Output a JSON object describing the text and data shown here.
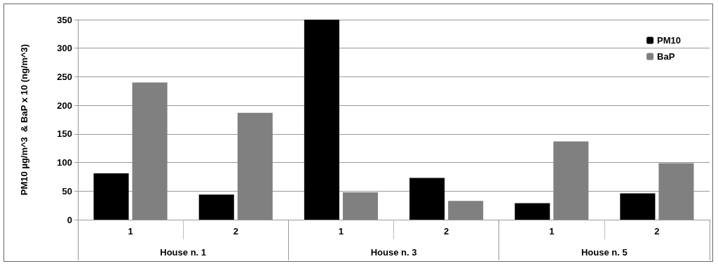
{
  "chart_data": {
    "type": "bar",
    "ylabel": "PM10 µg/m^3  & BaP x 10 (ng/m^3)",
    "categories": [
      "1",
      "2",
      "1",
      "2",
      "1",
      "2"
    ],
    "annotations": [
      "House n. 1",
      "House n. 3",
      "House n. 5"
    ],
    "series": [
      {
        "name": "PM10",
        "color": "#000000",
        "values": [
          81,
          44,
          350,
          73,
          29,
          46
        ]
      },
      {
        "name": "BaP",
        "color": "#808080",
        "values": [
          240,
          187,
          48,
          33,
          137,
          99
        ]
      }
    ],
    "ylim": [
      0,
      350
    ],
    "yticks": [
      0,
      50,
      100,
      150,
      200,
      250,
      300,
      350
    ],
    "grid": "y",
    "legend": "top right"
  }
}
